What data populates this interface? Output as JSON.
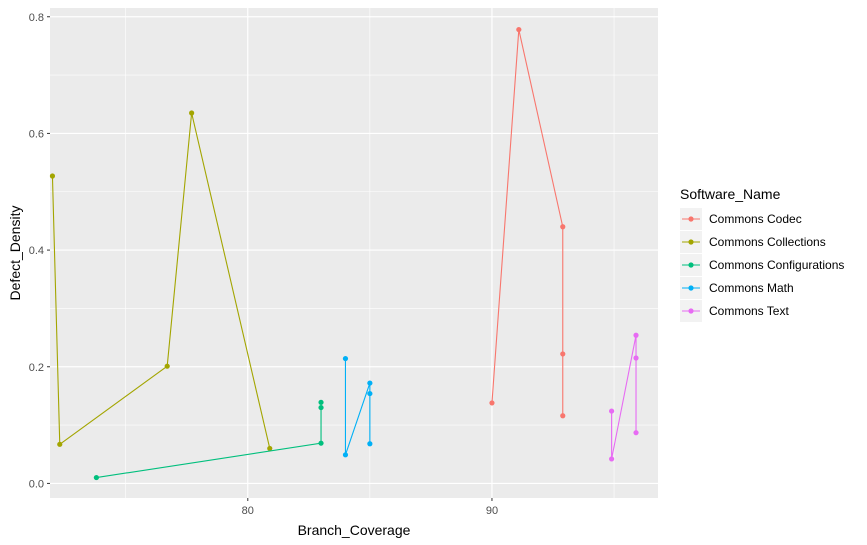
{
  "chart_data": {
    "type": "line",
    "xlabel": "Branch_Coverage",
    "ylabel": "Defect_Density",
    "xlim": [
      71.9,
      96.8
    ],
    "ylim": [
      -0.025,
      0.815
    ],
    "x_ticks": [
      80,
      90
    ],
    "x_tick_labels": [
      "80",
      "90"
    ],
    "y_ticks": [
      0.0,
      0.2,
      0.4,
      0.6,
      0.8
    ],
    "y_tick_labels": [
      "0.0",
      "0.2",
      "0.4",
      "0.6",
      "0.8"
    ],
    "grid": true,
    "legend": {
      "title": "Software_Name",
      "position": "right"
    },
    "series": [
      {
        "name": "Commons Codec",
        "color": "#F8766D",
        "points": [
          [
            90.0,
            0.138
          ],
          [
            91.1,
            0.778
          ],
          [
            92.9,
            0.44
          ],
          [
            92.9,
            0.222
          ],
          [
            92.9,
            0.116
          ]
        ]
      },
      {
        "name": "Commons Collections",
        "color": "#A3A500",
        "points": [
          [
            72.0,
            0.527
          ],
          [
            72.3,
            0.067
          ],
          [
            76.7,
            0.201
          ],
          [
            77.7,
            0.635
          ],
          [
            80.9,
            0.06
          ]
        ]
      },
      {
        "name": "Commons Configurations",
        "color": "#00BF7D",
        "points": [
          [
            73.8,
            0.01
          ],
          [
            83.0,
            0.069
          ],
          [
            83.0,
            0.13
          ],
          [
            83.0,
            0.139
          ]
        ]
      },
      {
        "name": "Commons Math",
        "color": "#00B0F6",
        "points": [
          [
            84.0,
            0.214
          ],
          [
            84.0,
            0.049
          ],
          [
            85.0,
            0.172
          ],
          [
            85.0,
            0.154
          ],
          [
            85.0,
            0.068
          ]
        ]
      },
      {
        "name": "Commons Text",
        "color": "#E76BF3",
        "points": [
          [
            94.9,
            0.124
          ],
          [
            94.9,
            0.042
          ],
          [
            95.9,
            0.254
          ],
          [
            95.9,
            0.215
          ],
          [
            95.9,
            0.087
          ]
        ]
      }
    ]
  }
}
